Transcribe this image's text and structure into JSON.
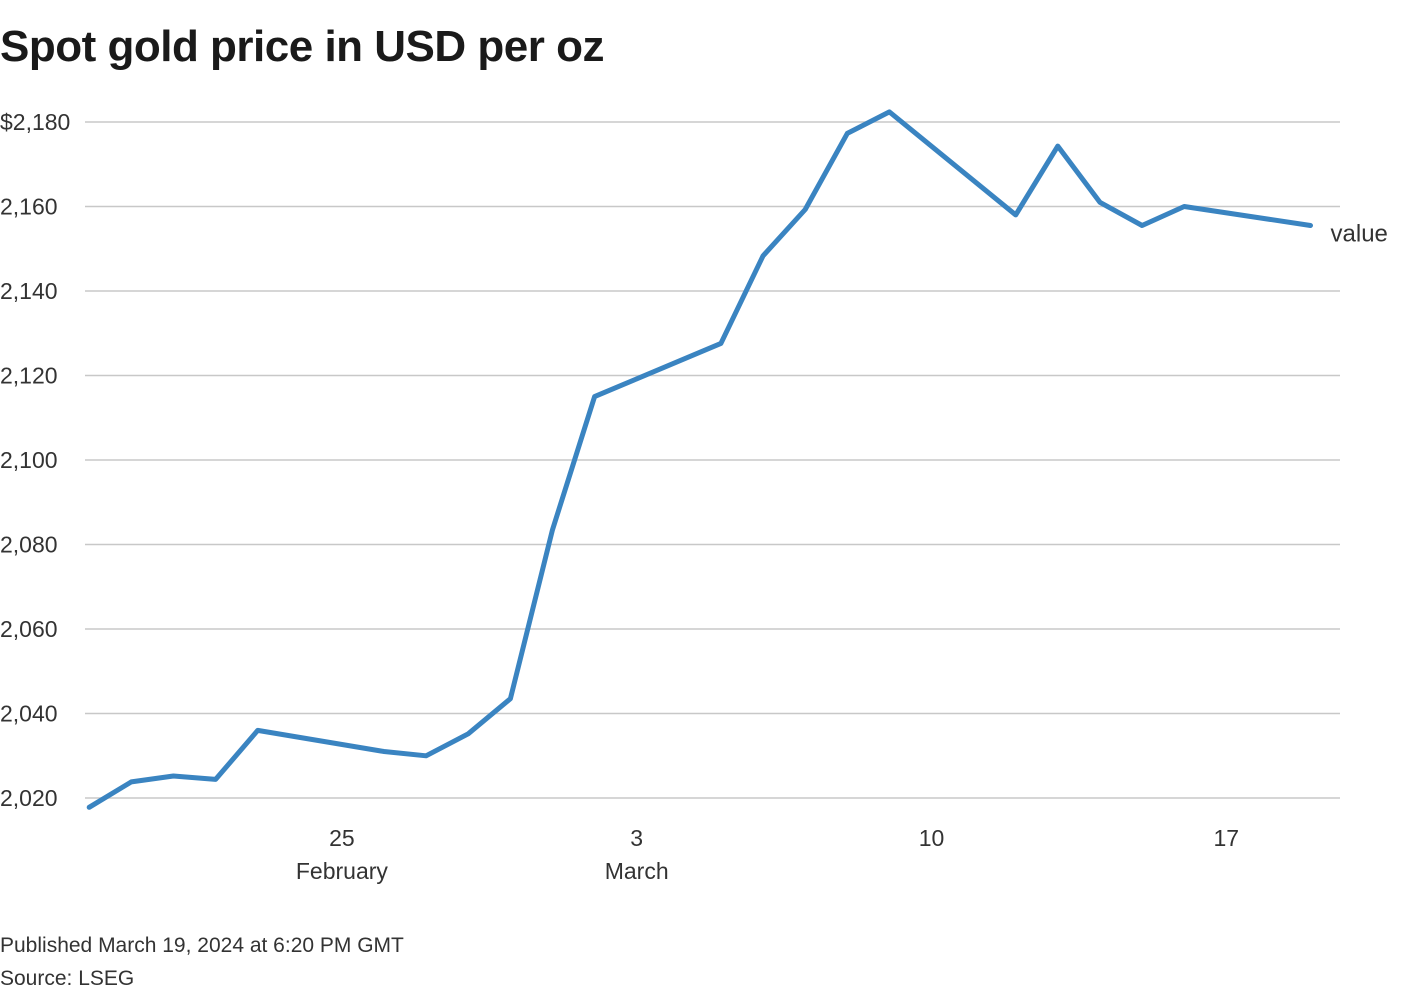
{
  "title": "Spot gold price in USD per oz",
  "published": "Published March 19, 2024 at 6:20 PM GMT",
  "source": "Source: LSEG",
  "colors": {
    "line": "#3a84c1",
    "grid": "#c8c8c8"
  },
  "chart_data": {
    "type": "line",
    "title": "Spot gold price in USD per oz",
    "xlabel": "",
    "ylabel": "",
    "grid": true,
    "ylim": [
      2020,
      2180
    ],
    "yticks": [
      {
        "value": 2180,
        "label": "$2,180"
      },
      {
        "value": 2160,
        "label": "2,160"
      },
      {
        "value": 2140,
        "label": "2,140"
      },
      {
        "value": 2120,
        "label": "2,120"
      },
      {
        "value": 2100,
        "label": "2,100"
      },
      {
        "value": 2080,
        "label": "2,080"
      },
      {
        "value": 2060,
        "label": "2,060"
      },
      {
        "value": 2040,
        "label": "2,040"
      },
      {
        "value": 2020,
        "label": "2,020"
      }
    ],
    "xlim": [
      -0.1,
      29.7
    ],
    "xticks": [
      {
        "day": 6,
        "label": "25",
        "sublabel": "February"
      },
      {
        "day": 13,
        "label": "3",
        "sublabel": "March"
      },
      {
        "day": 20,
        "label": "10",
        "sublabel": ""
      },
      {
        "day": 27,
        "label": "17",
        "sublabel": ""
      }
    ],
    "x_unit": "days since Feb 19, 2024",
    "series": [
      {
        "name": "value",
        "x": [
          0,
          1,
          2,
          3,
          4,
          7,
          8,
          9,
          10,
          11,
          12,
          15,
          16,
          17,
          18,
          19,
          22,
          23,
          24,
          25,
          26,
          29
        ],
        "values": [
          2017.8,
          2023.8,
          2025.2,
          2024.4,
          2036.0,
          2031.0,
          2030.0,
          2035.2,
          2043.5,
          2083.5,
          2115.0,
          2127.6,
          2148.3,
          2159.3,
          2177.3,
          2182.4,
          2158.0,
          2174.3,
          2161.0,
          2155.5,
          2160.0,
          2155.5
        ]
      }
    ]
  }
}
